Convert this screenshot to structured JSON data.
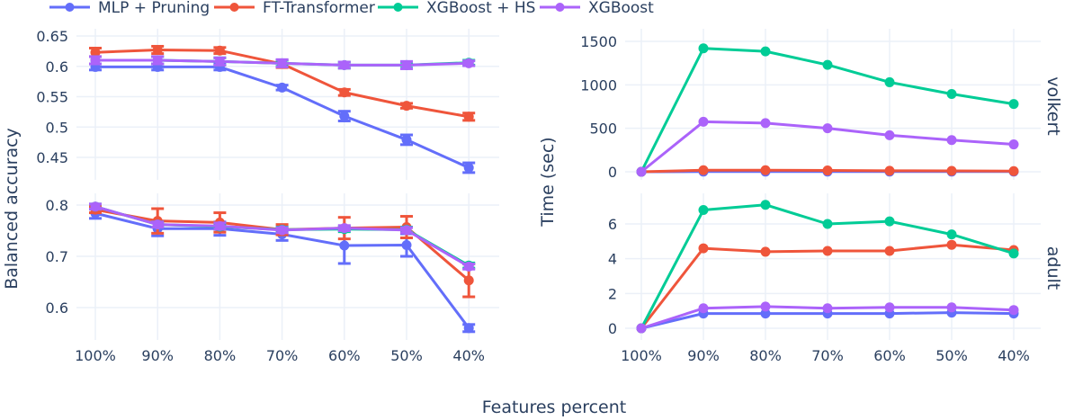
{
  "chart_data": {
    "type": "line",
    "title": "",
    "xlabel": "Features percent",
    "categories": [
      "100%",
      "90%",
      "80%",
      "70%",
      "60%",
      "50%",
      "40%"
    ],
    "legend": {
      "position": "top",
      "entries": [
        {
          "name": "MLP + Pruning",
          "color": "#636efa"
        },
        {
          "name": "FT-Transformer",
          "color": "#ef553b"
        },
        {
          "name": "XGBoost + HS",
          "color": "#00cc96"
        },
        {
          "name": "XGBoost",
          "color": "#ab63fa"
        }
      ]
    },
    "panels": [
      {
        "id": "accuracy-volkert",
        "ylabel": "Balanced accuracy",
        "ylim": [
          0.42,
          0.65
        ],
        "yticks": [
          0.45,
          0.5,
          0.55,
          0.6,
          0.65
        ],
        "ytick_labels": [
          "0.45",
          "0.5",
          "0.55",
          "0.6",
          "0.65"
        ],
        "error_bars": true,
        "series": [
          {
            "name": "MLP + Pruning",
            "values": [
              0.599,
              0.599,
              0.599,
              0.565,
              0.518,
              0.479,
              0.433
            ],
            "errors": [
              0.005,
              0.005,
              0.005,
              0.004,
              0.008,
              0.008,
              0.008
            ]
          },
          {
            "name": "FT-Transformer",
            "values": [
              0.623,
              0.627,
              0.626,
              0.604,
              0.557,
              0.535,
              0.517
            ],
            "errors": [
              0.007,
              0.006,
              0.005,
              0.006,
              0.005,
              0.004,
              0.006
            ]
          },
          {
            "name": "XGBoost + HS",
            "values": [
              0.61,
              0.61,
              0.608,
              0.605,
              0.602,
              0.602,
              0.606
            ],
            "errors": [
              0.006,
              0.006,
              0.006,
              0.005,
              0.005,
              0.005,
              0.004
            ]
          },
          {
            "name": "XGBoost",
            "values": [
              0.61,
              0.61,
              0.608,
              0.605,
              0.602,
              0.602,
              0.605
            ],
            "errors": [
              0.006,
              0.006,
              0.006,
              0.006,
              0.005,
              0.006,
              0.004
            ]
          }
        ]
      },
      {
        "id": "accuracy-adult",
        "ylabel": "Balanced accuracy",
        "ylim": [
          0.55,
          0.82
        ],
        "yticks": [
          0.6,
          0.7,
          0.8
        ],
        "ytick_labels": [
          "0.6",
          "0.7",
          "0.8"
        ],
        "error_bars": true,
        "series": [
          {
            "name": "MLP + Pruning",
            "values": [
              0.784,
              0.754,
              0.754,
              0.743,
              0.721,
              0.722,
              0.56
            ],
            "errors": [
              0.01,
              0.014,
              0.013,
              0.012,
              0.035,
              0.022,
              0.007
            ]
          },
          {
            "name": "FT-Transformer",
            "values": [
              0.791,
              0.769,
              0.766,
              0.752,
              0.755,
              0.757,
              0.653
            ],
            "errors": [
              0.006,
              0.024,
              0.019,
              0.01,
              0.021,
              0.021,
              0.032
            ]
          },
          {
            "name": "XGBoost + HS",
            "values": [
              0.797,
              0.762,
              0.758,
              0.752,
              0.753,
              0.752,
              0.682
            ],
            "errors": [
              0.005,
              0.005,
              0.005,
              0.005,
              0.005,
              0.005,
              0.005
            ]
          },
          {
            "name": "XGBoost",
            "values": [
              0.797,
              0.762,
              0.759,
              0.751,
              0.755,
              0.751,
              0.68
            ],
            "errors": [
              0.005,
              0.005,
              0.006,
              0.005,
              0.005,
              0.005,
              0.005
            ]
          }
        ]
      },
      {
        "id": "time-volkert",
        "ylabel": "Time (sec)",
        "row_label": "volkert",
        "ylim": [
          -60,
          1550
        ],
        "yticks": [
          0,
          500,
          1000,
          1500
        ],
        "ytick_labels": [
          "0",
          "500",
          "1000",
          "1500"
        ],
        "series": [
          {
            "name": "MLP + Pruning",
            "values": [
              0,
              2,
              2,
              2,
              2,
              2,
              2
            ]
          },
          {
            "name": "FT-Transformer",
            "values": [
              0,
              18,
              18,
              15,
              12,
              10,
              8
            ]
          },
          {
            "name": "XGBoost + HS",
            "values": [
              0,
              1420,
              1385,
              1230,
              1030,
              895,
              780
            ]
          },
          {
            "name": "XGBoost",
            "values": [
              0,
              575,
              560,
              500,
              420,
              365,
              315
            ]
          }
        ]
      },
      {
        "id": "time-adult",
        "ylabel": "Time (sec)",
        "row_label": "adult",
        "ylim": [
          -0.4,
          7.6
        ],
        "yticks": [
          0,
          2,
          4,
          6
        ],
        "ytick_labels": [
          "0",
          "2",
          "4",
          "6"
        ],
        "series": [
          {
            "name": "MLP + Pruning",
            "values": [
              0,
              0.85,
              0.85,
              0.85,
              0.85,
              0.9,
              0.85
            ]
          },
          {
            "name": "FT-Transformer",
            "values": [
              0,
              4.6,
              4.4,
              4.45,
              4.45,
              4.8,
              4.5
            ]
          },
          {
            "name": "XGBoost + HS",
            "values": [
              0,
              6.8,
              7.1,
              6.0,
              6.15,
              5.4,
              4.3
            ]
          },
          {
            "name": "XGBoost",
            "values": [
              0,
              1.15,
              1.25,
              1.15,
              1.2,
              1.2,
              1.05
            ]
          }
        ]
      }
    ],
    "layout": {
      "grid": true,
      "subplots": "2x2",
      "shared_x": true,
      "row_labels": [
        "volkert",
        "adult"
      ]
    }
  }
}
